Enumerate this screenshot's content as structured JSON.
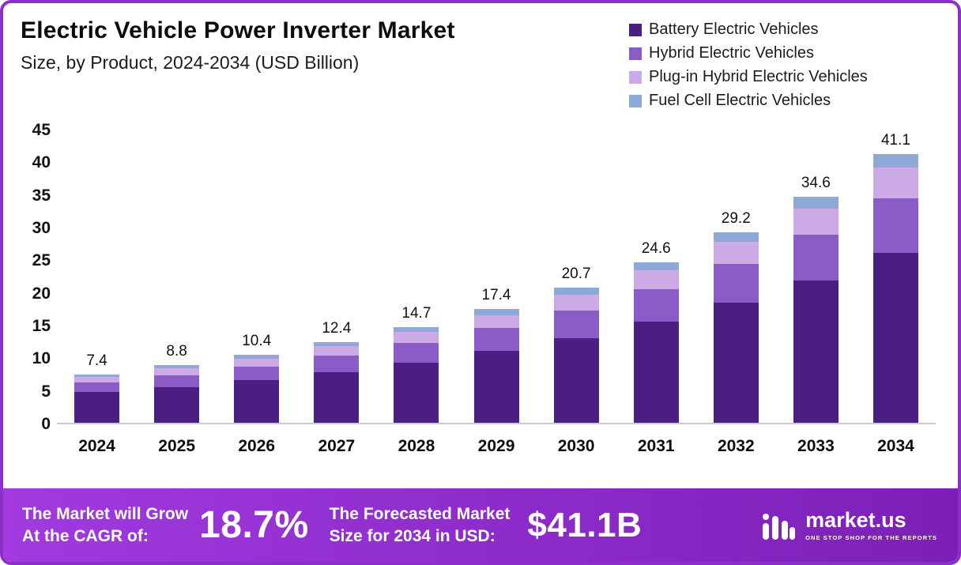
{
  "header": {
    "title": "Electric Vehicle Power Inverter Market",
    "subtitle": "Size, by Product, 2024-2034 (USD Billion)"
  },
  "colors": {
    "border": "#8a2fc8",
    "banner_start": "#a13adf",
    "banner_end": "#7c1fb8"
  },
  "chart_data": {
    "type": "bar",
    "stacked": true,
    "title": "Electric Vehicle Power Inverter Market Size, by Product, 2024-2034 (USD Billion)",
    "categories": [
      "2024",
      "2025",
      "2026",
      "2027",
      "2028",
      "2029",
      "2030",
      "2031",
      "2032",
      "2033",
      "2034"
    ],
    "series": [
      {
        "name": "Battery Electric Vehicles",
        "color": "#4b1f82",
        "values": [
          4.7,
          5.5,
          6.5,
          7.8,
          9.2,
          11.0,
          13.0,
          15.5,
          18.4,
          21.8,
          26.0
        ]
      },
      {
        "name": "Hybrid Electric Vehicles",
        "color": "#8b5cc8",
        "values": [
          1.5,
          1.8,
          2.1,
          2.5,
          3.0,
          3.5,
          4.2,
          5.0,
          5.9,
          7.0,
          8.3
        ]
      },
      {
        "name": "Plug-in Hybrid Electric Vehicles",
        "color": "#cbaae6",
        "values": [
          0.8,
          1.0,
          1.2,
          1.4,
          1.7,
          2.0,
          2.4,
          2.8,
          3.4,
          4.0,
          4.8
        ]
      },
      {
        "name": "Fuel Cell Electric Vehicles",
        "color": "#8ea9d8",
        "values": [
          0.4,
          0.5,
          0.6,
          0.7,
          0.8,
          0.9,
          1.1,
          1.3,
          1.5,
          1.8,
          2.0
        ]
      }
    ],
    "totals": [
      7.4,
      8.8,
      10.4,
      12.4,
      14.7,
      17.4,
      20.7,
      24.6,
      29.2,
      34.6,
      41.1
    ],
    "total_labels": [
      "7.4",
      "8.8",
      "10.4",
      "12.4",
      "14.7",
      "17.4",
      "20.7",
      "24.6",
      "29.2",
      "34.6",
      "41.1"
    ],
    "ylim": [
      0,
      45
    ],
    "ytick_step": 5,
    "grid": false,
    "legend_position": "top-right",
    "xlabel": "",
    "ylabel": ""
  },
  "legend": [
    {
      "label": "Battery Electric Vehicles"
    },
    {
      "label": "Hybrid Electric Vehicles"
    },
    {
      "label": "Plug-in Hybrid Electric Vehicles"
    },
    {
      "label": "Fuel Cell Electric Vehicles"
    }
  ],
  "banner": {
    "cagr_label_line1": "The Market will Grow",
    "cagr_label_line2": "At the CAGR of:",
    "cagr_value": "18.7%",
    "forecast_label_line1": "The Forecasted Market",
    "forecast_label_line2": "Size for 2034 in USD:",
    "forecast_value": "$41.1B",
    "logo_name": "market.us",
    "logo_tagline": "ONE STOP SHOP FOR THE REPORTS"
  }
}
